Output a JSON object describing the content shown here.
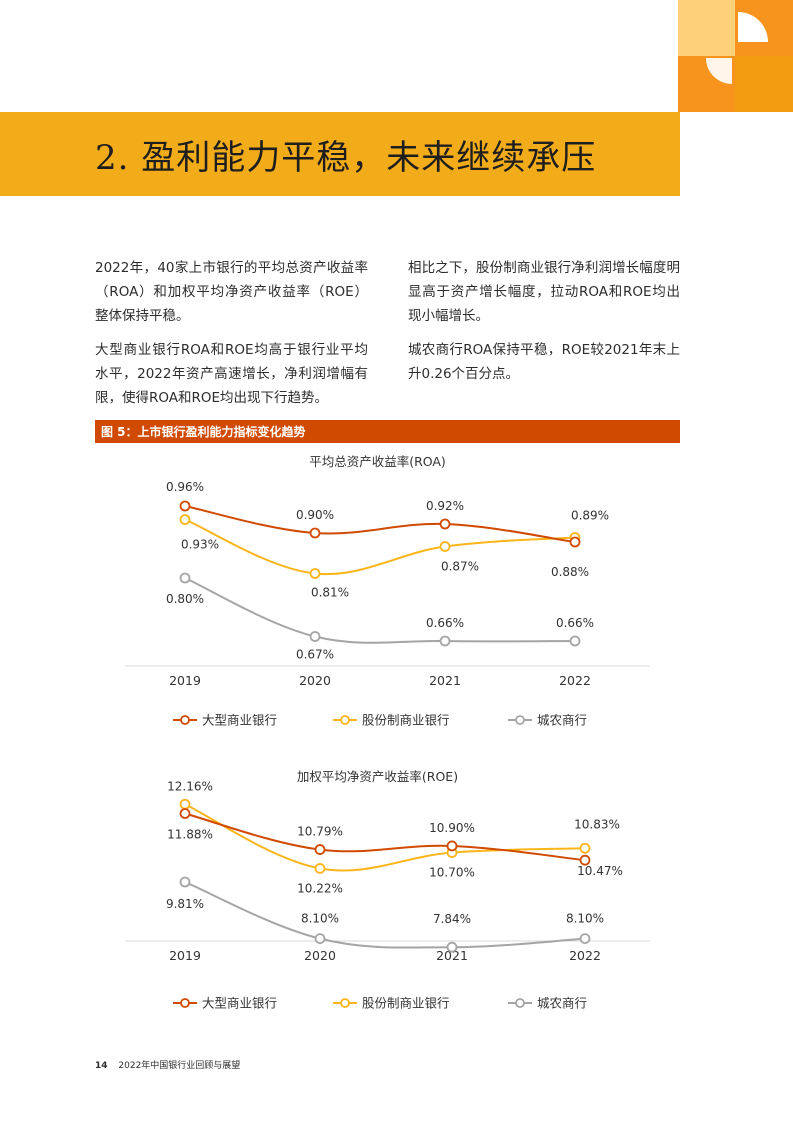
{
  "page": {
    "title": "2. 盈利能力平稳，未来继续承压",
    "left_paragraphs": [
      "2022年，40家上市银行的平均总资产收益率（ROA）和加权平均净资产收益率（ROE）整体保持平稳。",
      "大型商业银行ROA和ROE均高于银行业平均水平，2022年资产高速增长，净利润增幅有限，使得ROA和ROE均出现下行趋势。"
    ],
    "right_paragraphs": [
      "相比之下，股份制商业银行净利润增长幅度明显高于资产增长幅度，拉动ROA和ROE均出现小幅增长。",
      "城农商行ROA保持平稳，ROE较2021年末上升0.26个百分点。"
    ],
    "figure_caption": "图 5：上市银行盈利能力指标变化趋势",
    "footer": {
      "page_number": "14",
      "text": "2022年中国银行业回顾与展望"
    },
    "colors": {
      "accent_orange": "#d04a02",
      "accent_yellow": "#f3ac19",
      "deco_orange": "#f7941d",
      "deco_light": "#ffd07a"
    }
  },
  "chart_data": [
    {
      "type": "line",
      "title": "平均总资产收益率(ROA)",
      "categories": [
        "2019",
        "2020",
        "2021",
        "2022"
      ],
      "ylim": [
        0.6,
        1.0
      ],
      "grid": false,
      "legend_position": "bottom",
      "series": [
        {
          "name": "大型商业银行",
          "color": "#d04a02",
          "values": [
            0.96,
            0.9,
            0.92,
            0.88
          ],
          "labels": [
            "0.96%",
            "0.90%",
            "0.92%",
            "0.88%"
          ]
        },
        {
          "name": "股份制商业银行",
          "color": "#fbb51b",
          "values": [
            0.93,
            0.81,
            0.87,
            0.89
          ],
          "labels": [
            "0.93%",
            "0.81%",
            "0.87%",
            "0.89%"
          ]
        },
        {
          "name": "城农商行",
          "color": "#a5a5a5",
          "values": [
            0.8,
            0.67,
            0.66,
            0.66
          ],
          "labels": [
            "0.80%",
            "0.67%",
            "0.66%",
            "0.66%"
          ]
        }
      ]
    },
    {
      "type": "line",
      "title": "加权平均净资产收益率(ROE)",
      "categories": [
        "2019",
        "2020",
        "2021",
        "2022"
      ],
      "ylim": [
        7.0,
        12.5
      ],
      "grid": false,
      "legend_position": "bottom",
      "series": [
        {
          "name": "大型商业银行",
          "color": "#d04a02",
          "values": [
            11.88,
            10.79,
            10.9,
            10.47
          ],
          "labels": [
            "11.88%",
            "10.79%",
            "10.90%",
            "10.47%"
          ]
        },
        {
          "name": "股份制商业银行",
          "color": "#fbb51b",
          "values": [
            12.16,
            10.22,
            10.7,
            10.83
          ],
          "labels": [
            "12.16%",
            "10.22%",
            "10.70%",
            "10.83%"
          ]
        },
        {
          "name": "城农商行",
          "color": "#a5a5a5",
          "values": [
            9.81,
            8.1,
            7.84,
            8.1
          ],
          "labels": [
            "9.81%",
            "8.10%",
            "7.84%",
            "8.10%"
          ]
        }
      ]
    }
  ]
}
